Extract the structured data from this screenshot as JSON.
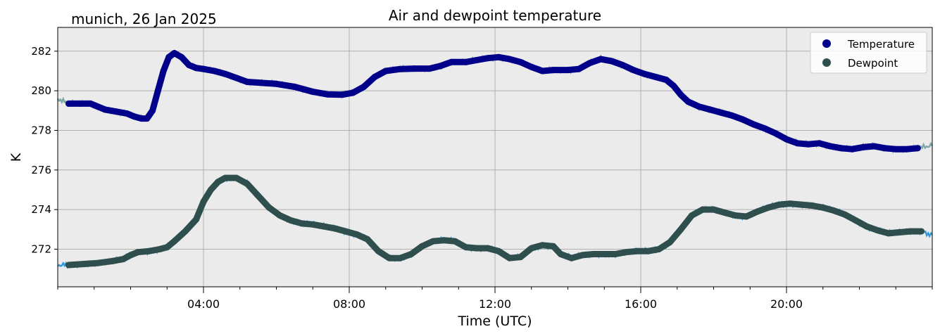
{
  "location_label": "munich, 26 Jan 2025",
  "chart_data": {
    "type": "line",
    "title": "Air and dewpoint temperature",
    "xlabel": "Time (UTC)",
    "ylabel": "K",
    "xlim_hours": [
      0,
      24
    ],
    "ylim": [
      270.1,
      283.2
    ],
    "grid": true,
    "legend_position": "top-right",
    "x_ticks": [
      {
        "hour": 4,
        "label": "04:00"
      },
      {
        "hour": 8,
        "label": "08:00"
      },
      {
        "hour": 12,
        "label": "12:00"
      },
      {
        "hour": 16,
        "label": "16:00"
      },
      {
        "hour": 20,
        "label": "20:00"
      }
    ],
    "y_ticks": [
      272,
      274,
      276,
      278,
      280,
      282
    ],
    "series": [
      {
        "name": "Temperature",
        "color": "#00008b",
        "raw_color": "#7fa8a8",
        "points": [
          [
            0.3,
            279.35
          ],
          [
            0.6,
            279.35
          ],
          [
            0.9,
            279.35
          ],
          [
            1.1,
            279.2
          ],
          [
            1.3,
            279.05
          ],
          [
            1.6,
            278.95
          ],
          [
            1.9,
            278.85
          ],
          [
            2.1,
            278.7
          ],
          [
            2.3,
            278.6
          ],
          [
            2.45,
            278.6
          ],
          [
            2.6,
            279.0
          ],
          [
            2.75,
            280.0
          ],
          [
            2.9,
            281.0
          ],
          [
            3.05,
            281.7
          ],
          [
            3.2,
            281.9
          ],
          [
            3.4,
            281.7
          ],
          [
            3.6,
            281.3
          ],
          [
            3.8,
            281.15
          ],
          [
            4.0,
            281.1
          ],
          [
            4.3,
            281.0
          ],
          [
            4.6,
            280.85
          ],
          [
            4.9,
            280.65
          ],
          [
            5.2,
            280.45
          ],
          [
            5.6,
            280.4
          ],
          [
            6.0,
            280.35
          ],
          [
            6.5,
            280.2
          ],
          [
            7.0,
            279.95
          ],
          [
            7.4,
            279.82
          ],
          [
            7.8,
            279.8
          ],
          [
            8.1,
            279.9
          ],
          [
            8.4,
            280.2
          ],
          [
            8.7,
            280.7
          ],
          [
            9.0,
            281.0
          ],
          [
            9.4,
            281.1
          ],
          [
            9.8,
            281.12
          ],
          [
            10.2,
            281.12
          ],
          [
            10.5,
            281.25
          ],
          [
            10.8,
            281.45
          ],
          [
            11.2,
            281.45
          ],
          [
            11.5,
            281.55
          ],
          [
            11.8,
            281.65
          ],
          [
            12.1,
            281.7
          ],
          [
            12.4,
            281.6
          ],
          [
            12.7,
            281.45
          ],
          [
            13.0,
            281.2
          ],
          [
            13.3,
            281.0
          ],
          [
            13.6,
            281.05
          ],
          [
            14.0,
            281.05
          ],
          [
            14.3,
            281.1
          ],
          [
            14.6,
            281.4
          ],
          [
            14.9,
            281.6
          ],
          [
            15.2,
            281.5
          ],
          [
            15.5,
            281.3
          ],
          [
            15.8,
            281.05
          ],
          [
            16.1,
            280.85
          ],
          [
            16.4,
            280.7
          ],
          [
            16.7,
            280.55
          ],
          [
            16.9,
            280.25
          ],
          [
            17.1,
            279.8
          ],
          [
            17.3,
            279.45
          ],
          [
            17.6,
            279.2
          ],
          [
            17.9,
            279.05
          ],
          [
            18.2,
            278.9
          ],
          [
            18.5,
            278.75
          ],
          [
            18.8,
            278.55
          ],
          [
            19.1,
            278.3
          ],
          [
            19.4,
            278.1
          ],
          [
            19.7,
            277.85
          ],
          [
            20.0,
            277.55
          ],
          [
            20.3,
            277.35
          ],
          [
            20.6,
            277.3
          ],
          [
            20.9,
            277.35
          ],
          [
            21.2,
            277.2
          ],
          [
            21.5,
            277.1
          ],
          [
            21.8,
            277.05
          ],
          [
            22.1,
            277.15
          ],
          [
            22.4,
            277.2
          ],
          [
            22.7,
            277.1
          ],
          [
            23.0,
            277.05
          ],
          [
            23.3,
            277.05
          ],
          [
            23.6,
            277.1
          ]
        ]
      },
      {
        "name": "Dewpoint",
        "color": "#2f4f4f",
        "raw_color": "#3399dd",
        "points": [
          [
            0.3,
            271.2
          ],
          [
            0.7,
            271.25
          ],
          [
            1.1,
            271.3
          ],
          [
            1.5,
            271.4
          ],
          [
            1.8,
            271.5
          ],
          [
            2.0,
            271.7
          ],
          [
            2.2,
            271.85
          ],
          [
            2.5,
            271.9
          ],
          [
            2.8,
            272.0
          ],
          [
            3.0,
            272.1
          ],
          [
            3.2,
            272.4
          ],
          [
            3.5,
            272.9
          ],
          [
            3.8,
            273.5
          ],
          [
            4.0,
            274.4
          ],
          [
            4.2,
            275.0
          ],
          [
            4.4,
            275.4
          ],
          [
            4.6,
            275.6
          ],
          [
            4.9,
            275.6
          ],
          [
            5.2,
            275.3
          ],
          [
            5.5,
            274.7
          ],
          [
            5.8,
            274.1
          ],
          [
            6.1,
            273.7
          ],
          [
            6.4,
            273.45
          ],
          [
            6.7,
            273.3
          ],
          [
            7.0,
            273.25
          ],
          [
            7.3,
            273.15
          ],
          [
            7.6,
            273.05
          ],
          [
            7.9,
            272.9
          ],
          [
            8.2,
            272.75
          ],
          [
            8.5,
            272.5
          ],
          [
            8.8,
            271.9
          ],
          [
            9.1,
            271.55
          ],
          [
            9.4,
            271.55
          ],
          [
            9.7,
            271.75
          ],
          [
            10.0,
            272.15
          ],
          [
            10.3,
            272.4
          ],
          [
            10.6,
            272.45
          ],
          [
            10.9,
            272.4
          ],
          [
            11.2,
            272.1
          ],
          [
            11.5,
            272.05
          ],
          [
            11.8,
            272.05
          ],
          [
            12.1,
            271.9
          ],
          [
            12.4,
            271.55
          ],
          [
            12.7,
            271.6
          ],
          [
            13.0,
            272.05
          ],
          [
            13.3,
            272.2
          ],
          [
            13.6,
            272.15
          ],
          [
            13.8,
            271.75
          ],
          [
            14.1,
            271.55
          ],
          [
            14.4,
            271.7
          ],
          [
            14.7,
            271.75
          ],
          [
            15.0,
            271.75
          ],
          [
            15.3,
            271.75
          ],
          [
            15.6,
            271.85
          ],
          [
            15.9,
            271.9
          ],
          [
            16.2,
            271.9
          ],
          [
            16.5,
            272.0
          ],
          [
            16.8,
            272.35
          ],
          [
            17.1,
            273.0
          ],
          [
            17.4,
            273.7
          ],
          [
            17.7,
            274.0
          ],
          [
            18.0,
            274.0
          ],
          [
            18.3,
            273.85
          ],
          [
            18.6,
            273.7
          ],
          [
            18.9,
            273.65
          ],
          [
            19.2,
            273.9
          ],
          [
            19.5,
            274.1
          ],
          [
            19.8,
            274.25
          ],
          [
            20.1,
            274.3
          ],
          [
            20.4,
            274.25
          ],
          [
            20.7,
            274.2
          ],
          [
            21.0,
            274.1
          ],
          [
            21.3,
            273.95
          ],
          [
            21.6,
            273.75
          ],
          [
            21.9,
            273.45
          ],
          [
            22.2,
            273.15
          ],
          [
            22.5,
            272.95
          ],
          [
            22.8,
            272.8
          ],
          [
            23.1,
            272.85
          ],
          [
            23.4,
            272.9
          ],
          [
            23.7,
            272.9
          ]
        ]
      }
    ]
  }
}
